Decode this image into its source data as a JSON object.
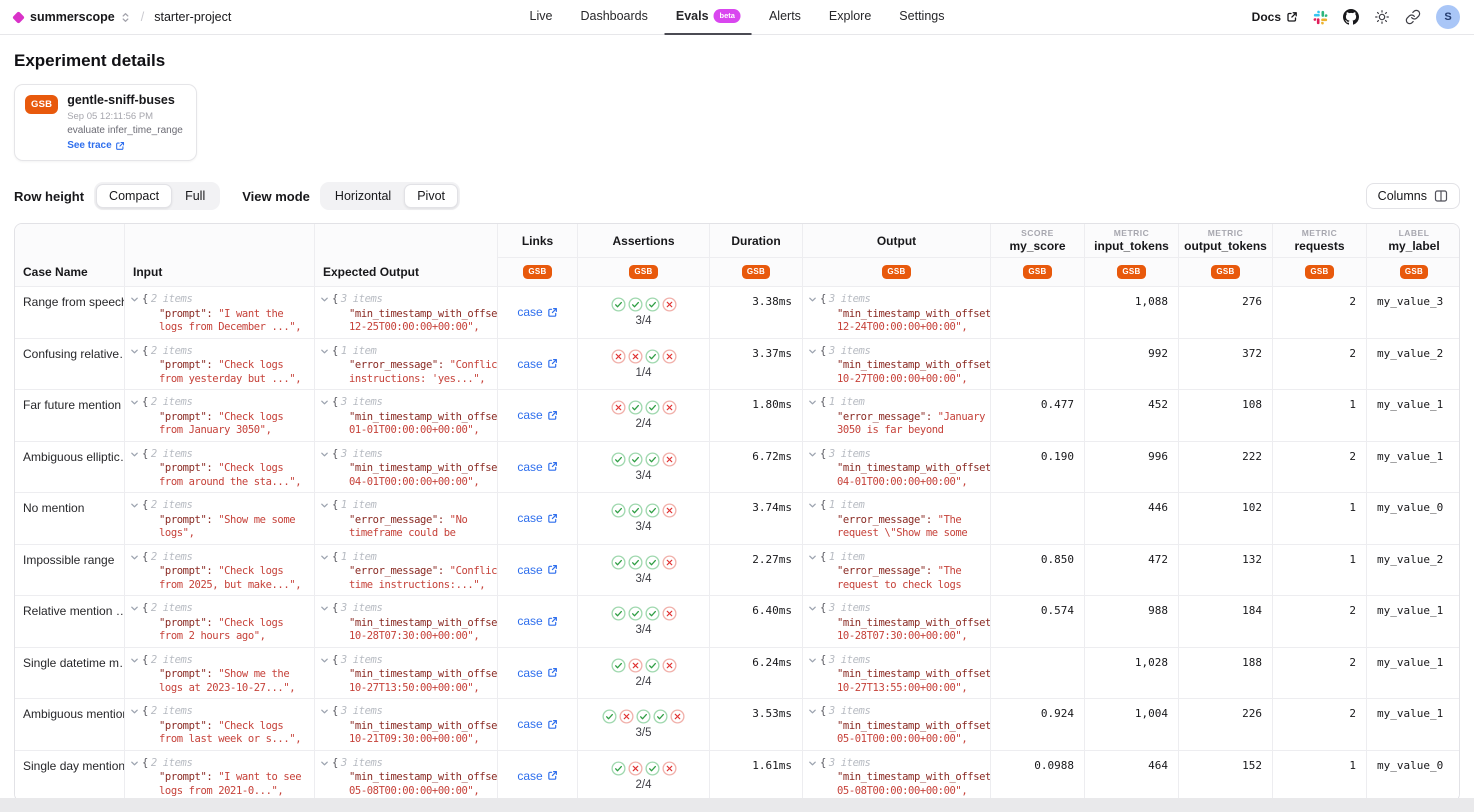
{
  "nav": {
    "org": "summerscope",
    "breadcrumb_separator": "/",
    "project": "starter-project",
    "tabs": [
      {
        "label": "Live",
        "active": false
      },
      {
        "label": "Dashboards",
        "active": false
      },
      {
        "label": "Evals",
        "badge": "beta",
        "active": true
      },
      {
        "label": "Alerts",
        "active": false
      },
      {
        "label": "Explore",
        "active": false
      },
      {
        "label": "Settings",
        "active": false
      }
    ],
    "docs_label": "Docs",
    "avatar_initial": "S"
  },
  "page": {
    "title": "Experiment details",
    "experiment_card": {
      "badge": "GSB",
      "name": "gentle-sniff-buses",
      "timestamp": "Sep 05 12:11:56 PM",
      "description": "evaluate infer_time_range",
      "trace_link": "See trace"
    }
  },
  "toolbar": {
    "row_height_label": "Row height",
    "row_height_options": [
      {
        "label": "Compact",
        "selected": true
      },
      {
        "label": "Full",
        "selected": false
      }
    ],
    "view_mode_label": "View mode",
    "view_mode_options": [
      {
        "label": "Horizontal",
        "selected": false
      },
      {
        "label": "Pivot",
        "selected": true
      }
    ],
    "columns_button": "Columns"
  },
  "table": {
    "run_badge": "GSB",
    "collapsed_brace": "{",
    "columns": [
      {
        "key": "case_name",
        "label": "Case Name",
        "type": "plain"
      },
      {
        "key": "input",
        "label": "Input",
        "type": "plain"
      },
      {
        "key": "expected",
        "label": "Expected Output",
        "type": "plain"
      },
      {
        "key": "links",
        "title": "Links",
        "type": "run"
      },
      {
        "key": "assertions",
        "title": "Assertions",
        "type": "run"
      },
      {
        "key": "duration",
        "title": "Duration",
        "type": "run"
      },
      {
        "key": "output",
        "title": "Output",
        "type": "run"
      },
      {
        "key": "score",
        "kicker": "SCORE",
        "title": "my_score",
        "type": "run"
      },
      {
        "key": "input_tokens",
        "kicker": "METRIC",
        "title": "input_tokens",
        "type": "run"
      },
      {
        "key": "output_tokens",
        "kicker": "METRIC",
        "title": "output_tokens",
        "type": "run"
      },
      {
        "key": "requests",
        "kicker": "METRIC",
        "title": "requests",
        "type": "run"
      },
      {
        "key": "label",
        "kicker": "LABEL",
        "title": "my_label",
        "type": "run"
      }
    ],
    "rows": [
      {
        "case_name": "Range from speech",
        "input": {
          "count": "2 items",
          "key": "\"prompt\":",
          "v1": " \"I want the",
          "v2": "logs from December ...\","
        },
        "expected": {
          "count": "3 items",
          "key": "\"min_timestamp_with_offset\"",
          "v1": "",
          "v2": "12-25T00:00:00+00:00\","
        },
        "links": "case",
        "assertions": {
          "checks": [
            "pass",
            "pass",
            "pass",
            "fail"
          ],
          "ratio": "3/4"
        },
        "duration": "3.38ms",
        "output": {
          "count": "3 items",
          "key": "\"min_timestamp_with_offset\"",
          "v1": "",
          "v2": "12-24T00:00:00+00:00\","
        },
        "score": "",
        "input_tokens": "1,088",
        "output_tokens": "276",
        "requests": "2",
        "label": "my_value_3"
      },
      {
        "case_name": "Confusing relative…",
        "input": {
          "count": "2 items",
          "key": "\"prompt\":",
          "v1": " \"Check logs",
          "v2": "from yesterday but ...\","
        },
        "expected": {
          "count": "1 item",
          "key": "\"error_message\":",
          "v1": " \"Conflicti",
          "v2": "instructions: 'yes...\","
        },
        "links": "case",
        "assertions": {
          "checks": [
            "fail",
            "fail",
            "pass",
            "fail"
          ],
          "ratio": "1/4"
        },
        "duration": "3.37ms",
        "output": {
          "count": "3 items",
          "key": "\"min_timestamp_with_offset\"",
          "v1": "",
          "v2": "10-27T00:00:00+00:00\","
        },
        "score": "",
        "input_tokens": "992",
        "output_tokens": "372",
        "requests": "2",
        "label": "my_value_2"
      },
      {
        "case_name": "Far future mention",
        "input": {
          "count": "2 items",
          "key": "\"prompt\":",
          "v1": " \"Check logs",
          "v2": "from January 3050\","
        },
        "expected": {
          "count": "3 items",
          "key": "\"min_timestamp_with_offset\"",
          "v1": "",
          "v2": "01-01T00:00:00+00:00\","
        },
        "links": "case",
        "assertions": {
          "checks": [
            "fail",
            "pass",
            "pass",
            "fail"
          ],
          "ratio": "2/4"
        },
        "duration": "1.80ms",
        "output": {
          "count": "1 item",
          "key": "\"error_message\":",
          "v1": " \"January",
          "v2": "3050 is far beyond"
        },
        "score": "0.477",
        "input_tokens": "452",
        "output_tokens": "108",
        "requests": "1",
        "label": "my_value_1"
      },
      {
        "case_name": "Ambiguous elliptic…",
        "input": {
          "count": "2 items",
          "key": "\"prompt\":",
          "v1": " \"Check logs",
          "v2": "from around the sta...\","
        },
        "expected": {
          "count": "3 items",
          "key": "\"min_timestamp_with_offset\"",
          "v1": "",
          "v2": "04-01T00:00:00+00:00\","
        },
        "links": "case",
        "assertions": {
          "checks": [
            "pass",
            "pass",
            "pass",
            "fail"
          ],
          "ratio": "3/4"
        },
        "duration": "6.72ms",
        "output": {
          "count": "3 items",
          "key": "\"min_timestamp_with_offset\"",
          "v1": "",
          "v2": "04-01T00:00:00+00:00\","
        },
        "score": "0.190",
        "input_tokens": "996",
        "output_tokens": "222",
        "requests": "2",
        "label": "my_value_1"
      },
      {
        "case_name": "No mention",
        "input": {
          "count": "2 items",
          "key": "\"prompt\":",
          "v1": " \"Show me some",
          "v2": "logs\","
        },
        "expected": {
          "count": "1 item",
          "key": "\"error_message\":",
          "v1": " \"No",
          "v2": "timeframe could be"
        },
        "links": "case",
        "assertions": {
          "checks": [
            "pass",
            "pass",
            "pass",
            "fail"
          ],
          "ratio": "3/4"
        },
        "duration": "3.74ms",
        "output": {
          "count": "1 item",
          "key": "\"error_message\":",
          "v1": " \"The",
          "v2": "request \\\"Show me some"
        },
        "score": "",
        "input_tokens": "446",
        "output_tokens": "102",
        "requests": "1",
        "label": "my_value_0"
      },
      {
        "case_name": "Impossible range",
        "input": {
          "count": "2 items",
          "key": "\"prompt\":",
          "v1": " \"Check logs",
          "v2": "from 2025, but make...\","
        },
        "expected": {
          "count": "1 item",
          "key": "\"error_message\":",
          "v1": " \"Conflict:",
          "v2": "time instructions:...\","
        },
        "links": "case",
        "assertions": {
          "checks": [
            "pass",
            "pass",
            "pass",
            "fail"
          ],
          "ratio": "3/4"
        },
        "duration": "2.27ms",
        "output": {
          "count": "1 item",
          "key": "\"error_message\":",
          "v1": " \"The",
          "v2": "request to check logs"
        },
        "score": "0.850",
        "input_tokens": "472",
        "output_tokens": "132",
        "requests": "1",
        "label": "my_value_2"
      },
      {
        "case_name": "Relative mention …",
        "input": {
          "count": "2 items",
          "key": "\"prompt\":",
          "v1": " \"Check logs",
          "v2": "from 2 hours ago\","
        },
        "expected": {
          "count": "3 items",
          "key": "\"min_timestamp_with_offset\"",
          "v1": "",
          "v2": "10-28T07:30:00+00:00\","
        },
        "links": "case",
        "assertions": {
          "checks": [
            "pass",
            "pass",
            "pass",
            "fail"
          ],
          "ratio": "3/4"
        },
        "duration": "6.40ms",
        "output": {
          "count": "3 items",
          "key": "\"min_timestamp_with_offset\"",
          "v1": "",
          "v2": "10-28T07:30:00+00:00\","
        },
        "score": "0.574",
        "input_tokens": "988",
        "output_tokens": "184",
        "requests": "2",
        "label": "my_value_1"
      },
      {
        "case_name": "Single datetime m…",
        "input": {
          "count": "2 items",
          "key": "\"prompt\":",
          "v1": " \"Show me the",
          "v2": "logs at 2023-10-27...\","
        },
        "expected": {
          "count": "3 items",
          "key": "\"min_timestamp_with_offset\"",
          "v1": "",
          "v2": "10-27T13:50:00+00:00\","
        },
        "links": "case",
        "assertions": {
          "checks": [
            "pass",
            "fail",
            "pass",
            "fail"
          ],
          "ratio": "2/4"
        },
        "duration": "6.24ms",
        "output": {
          "count": "3 items",
          "key": "\"min_timestamp_with_offset\"",
          "v1": "",
          "v2": "10-27T13:55:00+00:00\","
        },
        "score": "",
        "input_tokens": "1,028",
        "output_tokens": "188",
        "requests": "2",
        "label": "my_value_1"
      },
      {
        "case_name": "Ambiguous mention",
        "input": {
          "count": "2 items",
          "key": "\"prompt\":",
          "v1": " \"Check logs",
          "v2": "from last week or s...\","
        },
        "expected": {
          "count": "3 items",
          "key": "\"min_timestamp_with_offset\"",
          "v1": "",
          "v2": "10-21T09:30:00+00:00\","
        },
        "links": "case",
        "assertions": {
          "checks": [
            "pass",
            "fail",
            "pass",
            "pass",
            "fail"
          ],
          "ratio": "3/5"
        },
        "duration": "3.53ms",
        "output": {
          "count": "3 items",
          "key": "\"min_timestamp_with_offset\"",
          "v1": "",
          "v2": "05-01T00:00:00+00:00\","
        },
        "score": "0.924",
        "input_tokens": "1,004",
        "output_tokens": "226",
        "requests": "2",
        "label": "my_value_1"
      },
      {
        "case_name": "Single day mention",
        "input": {
          "count": "2 items",
          "key": "\"prompt\":",
          "v1": " \"I want to see",
          "v2": "logs from 2021-0...\","
        },
        "expected": {
          "count": "3 items",
          "key": "\"min_timestamp_with_offset\"",
          "v1": "",
          "v2": "05-08T00:00:00+00:00\","
        },
        "links": "case",
        "assertions": {
          "checks": [
            "pass",
            "fail",
            "pass",
            "fail"
          ],
          "ratio": "2/4"
        },
        "duration": "1.61ms",
        "output": {
          "count": "3 items",
          "key": "\"min_timestamp_with_offset\"",
          "v1": "",
          "v2": "05-08T00:00:00+00:00\","
        },
        "score": "0.0988",
        "input_tokens": "464",
        "output_tokens": "152",
        "requests": "1",
        "label": "my_value_0"
      }
    ]
  },
  "colors": {
    "brand_magenta": "#d932c8",
    "beta_badge": "#d946ef",
    "run_badge_orange": "#e8590c",
    "link_blue": "#2f6fed",
    "pass_green": "#2f9e44",
    "fail_red": "#e03131",
    "json_key_red": "#8a2a23",
    "json_string_red": "#c6423a"
  }
}
